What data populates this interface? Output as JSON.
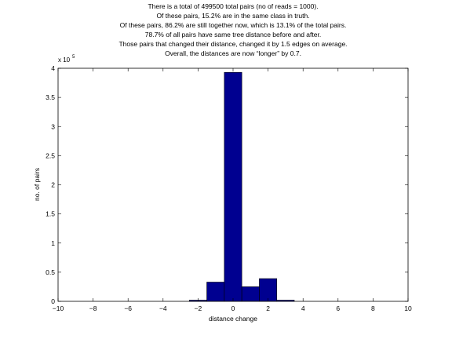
{
  "chart_data": {
    "type": "bar",
    "title_lines": [
      "There is a total of 499500 total pairs (no of reads = 1000).",
      "Of these pairs, 15.2% are in the same class in truth.",
      "Of these pairs, 86.2% are still together now, which is 13.1% of the total pairs.",
      "78.7% of all pairs have same tree distance before and after.",
      "Those pairs that changed their distance, changed it by 1.5 edges on average.",
      "Overall, the distances are now “longer” by 0.7."
    ],
    "xlabel": "distance change",
    "ylabel": "no. of pairs",
    "y_exponent_label": "x 10",
    "y_exponent_power": "5",
    "xlim": [
      -10,
      10
    ],
    "ylim": [
      0,
      4
    ],
    "x_ticks": [
      -10,
      -8,
      -6,
      -4,
      -2,
      0,
      2,
      4,
      6,
      8,
      10
    ],
    "x_tick_labels": [
      "−10",
      "−8",
      "−6",
      "−4",
      "−2",
      "0",
      "2",
      "4",
      "6",
      "8",
      "10"
    ],
    "y_ticks": [
      0,
      0.5,
      1,
      1.5,
      2,
      2.5,
      3,
      3.5,
      4
    ],
    "y_tick_labels": [
      "0",
      "0.5",
      "1",
      "1.5",
      "2",
      "2.5",
      "3",
      "3.5",
      "4"
    ],
    "bin_width": 1,
    "bins": [
      {
        "x": -2,
        "value": 0.02
      },
      {
        "x": -1,
        "value": 0.33
      },
      {
        "x": 0,
        "value": 3.93
      },
      {
        "x": 1,
        "value": 0.25
      },
      {
        "x": 2,
        "value": 0.39
      },
      {
        "x": 3,
        "value": 0.02
      }
    ],
    "bar_color": "#000090",
    "edge_color": "#000000",
    "grid": false
  }
}
